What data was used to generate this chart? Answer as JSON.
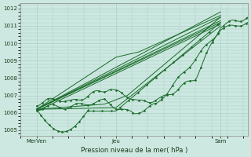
{
  "xlabel": "Pression niveau de la mer( hPa )",
  "xtick_labels": [
    "MerVen",
    "Jeu",
    "Sam"
  ],
  "xtick_positions": [
    0.07,
    0.42,
    0.88
  ],
  "ylim": [
    1004.7,
    1012.3
  ],
  "xlim": [
    0.0,
    1.0
  ],
  "yticks": [
    1005,
    1006,
    1007,
    1008,
    1009,
    1010,
    1011,
    1012
  ],
  "bg_color": "#cce8e0",
  "grid_color": "#aacfc5",
  "line_color": "#1a6b2a",
  "fig_bg": "#cce8e0"
}
